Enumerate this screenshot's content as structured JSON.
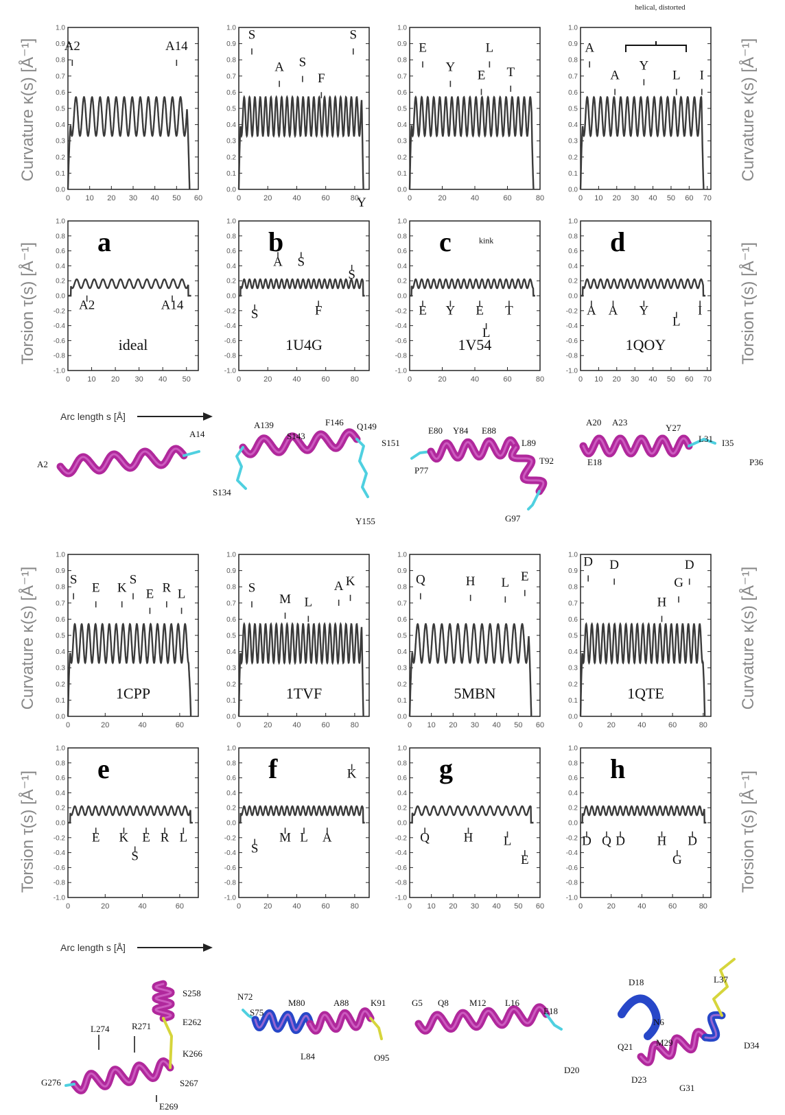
{
  "figure": {
    "y_label_curvature": "Curvature κ(s) [Å⁻¹]",
    "y_label_torsion": "Torsion τ(s) [Å⁻¹]",
    "x_label": "Arc length s [Å]",
    "annotations": {
      "bracket": "helical, distorted",
      "kink": "kink",
      "stray_y": "Y"
    },
    "colors": {
      "curve": "#3a3a3a",
      "helix": "#b0289c",
      "blue_segment": "#2747c8",
      "coil": "#4fd0e0"
    }
  },
  "chart_data": [
    {
      "panel": "a",
      "name": "ideal",
      "type": "line",
      "curvature_xlim": [
        0,
        60
      ],
      "curvature_xticks": [
        0,
        10,
        20,
        30,
        40,
        50,
        60
      ],
      "torsion_xlim": [
        0,
        55
      ],
      "torsion_xticks": [
        0,
        10,
        20,
        30,
        40,
        50
      ],
      "ylim_curvature": [
        0,
        1.0
      ],
      "yticks_curvature": [
        0.0,
        0.1,
        0.2,
        0.3,
        0.4,
        0.5,
        0.6,
        0.7,
        0.8,
        0.9,
        1.0
      ],
      "ylim_torsion": [
        -1.0,
        1.0
      ],
      "yticks_torsion": [
        -1.0,
        -0.8,
        -0.6,
        -0.4,
        -0.2,
        0.0,
        0.2,
        0.4,
        0.6,
        0.8,
        1.0
      ],
      "curvature_labels": [
        {
          "text": "A2",
          "x": 2,
          "y": 0.86
        },
        {
          "text": "A14",
          "x": 50,
          "y": 0.86
        }
      ],
      "torsion_labels": [
        {
          "text": "A2",
          "x": 8,
          "y": -0.18
        },
        {
          "text": "A14",
          "x": 44,
          "y": -0.18
        }
      ],
      "structure_labels": [
        "A2",
        "A14"
      ]
    },
    {
      "panel": "b",
      "name": "1U4G",
      "type": "line",
      "curvature_xlim": [
        0,
        90
      ],
      "curvature_xticks": [
        0,
        20,
        40,
        60,
        80
      ],
      "torsion_xlim": [
        0,
        90
      ],
      "torsion_xticks": [
        0,
        20,
        40,
        60,
        80
      ],
      "ylim_curvature": [
        0,
        1.0
      ],
      "yticks_curvature": [
        0.0,
        0.1,
        0.2,
        0.3,
        0.4,
        0.5,
        0.6,
        0.7,
        0.8,
        0.9,
        1.0
      ],
      "ylim_torsion": [
        -1.0,
        1.0
      ],
      "yticks_torsion": [
        -1.0,
        -0.8,
        -0.6,
        -0.4,
        -0.2,
        0.0,
        0.2,
        0.4,
        0.6,
        0.8,
        1.0
      ],
      "curvature_labels": [
        {
          "text": "S",
          "x": 9,
          "y": 0.93
        },
        {
          "text": "A",
          "x": 28,
          "y": 0.73
        },
        {
          "text": "S",
          "x": 44,
          "y": 0.76
        },
        {
          "text": "F",
          "x": 57,
          "y": 0.66
        },
        {
          "text": "S",
          "x": 79,
          "y": 0.93
        }
      ],
      "torsion_labels": [
        {
          "text": "A",
          "x": 27,
          "y": 0.4
        },
        {
          "text": "S",
          "x": 43,
          "y": 0.4
        },
        {
          "text": "S",
          "x": 78,
          "y": 0.23
        },
        {
          "text": "S",
          "x": 11,
          "y": -0.3
        },
        {
          "text": "F",
          "x": 55,
          "y": -0.25
        }
      ],
      "structure_labels": [
        "A139",
        "S143",
        "F146",
        "Q149",
        "S151",
        "S134",
        "Y155"
      ]
    },
    {
      "panel": "c",
      "name": "1V54",
      "type": "line",
      "curvature_xlim": [
        0,
        80
      ],
      "curvature_xticks": [
        0,
        20,
        40,
        60,
        80
      ],
      "torsion_xlim": [
        0,
        80
      ],
      "torsion_xticks": [
        0,
        20,
        40,
        60,
        80
      ],
      "ylim_curvature": [
        0,
        1.0
      ],
      "yticks_curvature": [
        0.0,
        0.1,
        0.2,
        0.3,
        0.4,
        0.5,
        0.6,
        0.7,
        0.8,
        0.9,
        1.0
      ],
      "ylim_torsion": [
        -1.0,
        1.0
      ],
      "yticks_torsion": [
        -1.0,
        -0.8,
        -0.6,
        -0.4,
        -0.2,
        0.0,
        0.2,
        0.4,
        0.6,
        0.8,
        1.0
      ],
      "curvature_labels": [
        {
          "text": "E",
          "x": 8,
          "y": 0.85
        },
        {
          "text": "Y",
          "x": 25,
          "y": 0.73
        },
        {
          "text": "L",
          "x": 49,
          "y": 0.85
        },
        {
          "text": "E",
          "x": 44,
          "y": 0.68
        },
        {
          "text": "T",
          "x": 62,
          "y": 0.7
        }
      ],
      "torsion_labels": [
        {
          "text": "kink",
          "x": 47,
          "y": 0.7
        },
        {
          "text": "E",
          "x": 8,
          "y": -0.25
        },
        {
          "text": "Y",
          "x": 25,
          "y": -0.25
        },
        {
          "text": "E",
          "x": 43,
          "y": -0.25
        },
        {
          "text": "T",
          "x": 61,
          "y": -0.25
        },
        {
          "text": "L",
          "x": 47,
          "y": -0.55
        }
      ],
      "structure_labels": [
        "E80",
        "Y84",
        "E88",
        "L89",
        "T92",
        "P77",
        "G97"
      ]
    },
    {
      "panel": "d",
      "name": "1QOY",
      "type": "line",
      "curvature_xlim": [
        0,
        72
      ],
      "curvature_xticks": [
        0,
        10,
        20,
        30,
        40,
        50,
        60,
        70
      ],
      "torsion_xlim": [
        0,
        72
      ],
      "torsion_xticks": [
        0,
        10,
        20,
        30,
        40,
        50,
        60,
        70
      ],
      "ylim_curvature": [
        0,
        1.0
      ],
      "yticks_curvature": [
        0.0,
        0.1,
        0.2,
        0.3,
        0.4,
        0.5,
        0.6,
        0.7,
        0.8,
        0.9,
        1.0
      ],
      "ylim_torsion": [
        -1.0,
        1.0
      ],
      "yticks_torsion": [
        -1.0,
        -0.8,
        -0.6,
        -0.4,
        -0.2,
        0.0,
        0.2,
        0.4,
        0.6,
        0.8,
        1.0
      ],
      "curvature_labels": [
        {
          "text": "A",
          "x": 5,
          "y": 0.85
        },
        {
          "text": "A",
          "x": 19,
          "y": 0.68
        },
        {
          "text": "Y",
          "x": 35,
          "y": 0.74
        },
        {
          "text": "L",
          "x": 53,
          "y": 0.68
        },
        {
          "text": "I",
          "x": 67,
          "y": 0.68
        }
      ],
      "torsion_labels": [
        {
          "text": "A",
          "x": 6,
          "y": -0.25
        },
        {
          "text": "A",
          "x": 18,
          "y": -0.25
        },
        {
          "text": "Y",
          "x": 35,
          "y": -0.25
        },
        {
          "text": "L",
          "x": 53,
          "y": -0.4
        },
        {
          "text": "I",
          "x": 66,
          "y": -0.25
        }
      ],
      "structure_labels": [
        "A20",
        "A23",
        "Y27",
        "L31",
        "I35",
        "E18",
        "P36"
      ]
    },
    {
      "panel": "e",
      "name": "1CPP",
      "type": "line",
      "curvature_xlim": [
        0,
        70
      ],
      "curvature_xticks": [
        0,
        20,
        40,
        60
      ],
      "torsion_xlim": [
        0,
        70
      ],
      "torsion_xticks": [
        0,
        20,
        40,
        60
      ],
      "ylim_curvature": [
        0,
        1.0
      ],
      "yticks_curvature": [
        0.0,
        0.1,
        0.2,
        0.3,
        0.4,
        0.5,
        0.6,
        0.7,
        0.8,
        0.9,
        1.0
      ],
      "ylim_torsion": [
        -1.0,
        1.0
      ],
      "yticks_torsion": [
        -1.0,
        -0.8,
        -0.6,
        -0.4,
        -0.2,
        0.0,
        0.2,
        0.4,
        0.6,
        0.8,
        1.0
      ],
      "curvature_labels": [
        {
          "text": "S",
          "x": 3,
          "y": 0.82
        },
        {
          "text": "E",
          "x": 15,
          "y": 0.77
        },
        {
          "text": "K",
          "x": 29,
          "y": 0.77
        },
        {
          "text": "S",
          "x": 35,
          "y": 0.82
        },
        {
          "text": "E",
          "x": 44,
          "y": 0.73
        },
        {
          "text": "R",
          "x": 53,
          "y": 0.77
        },
        {
          "text": "L",
          "x": 61,
          "y": 0.73
        }
      ],
      "torsion_labels": [
        {
          "text": "E",
          "x": 15,
          "y": -0.25
        },
        {
          "text": "K",
          "x": 30,
          "y": -0.25
        },
        {
          "text": "E",
          "x": 42,
          "y": -0.25
        },
        {
          "text": "R",
          "x": 52,
          "y": -0.25
        },
        {
          "text": "L",
          "x": 62,
          "y": -0.25
        },
        {
          "text": "S",
          "x": 36,
          "y": -0.5
        }
      ],
      "structure_labels": [
        "S258",
        "E262",
        "K266",
        "S267",
        "E269",
        "R271",
        "L274",
        "G276"
      ]
    },
    {
      "panel": "f",
      "name": "1TVF",
      "type": "line",
      "curvature_xlim": [
        0,
        90
      ],
      "curvature_xticks": [
        0,
        20,
        40,
        60,
        80
      ],
      "torsion_xlim": [
        0,
        90
      ],
      "torsion_xticks": [
        0,
        20,
        40,
        60,
        80
      ],
      "ylim_curvature": [
        0,
        1.0
      ],
      "yticks_curvature": [
        0.0,
        0.1,
        0.2,
        0.3,
        0.4,
        0.5,
        0.6,
        0.7,
        0.8,
        0.9,
        1.0
      ],
      "ylim_torsion": [
        -1.0,
        1.0
      ],
      "yticks_torsion": [
        -1.0,
        -0.8,
        -0.6,
        -0.4,
        -0.2,
        0.0,
        0.2,
        0.4,
        0.6,
        0.8,
        1.0
      ],
      "curvature_labels": [
        {
          "text": "S",
          "x": 9,
          "y": 0.77
        },
        {
          "text": "M",
          "x": 32,
          "y": 0.7
        },
        {
          "text": "L",
          "x": 48,
          "y": 0.68
        },
        {
          "text": "A",
          "x": 69,
          "y": 0.78
        },
        {
          "text": "K",
          "x": 77,
          "y": 0.81
        }
      ],
      "torsion_labels": [
        {
          "text": "K",
          "x": 78,
          "y": 0.6
        },
        {
          "text": "S",
          "x": 11,
          "y": -0.4
        },
        {
          "text": "M",
          "x": 32,
          "y": -0.25
        },
        {
          "text": "L",
          "x": 45,
          "y": -0.25
        },
        {
          "text": "A",
          "x": 61,
          "y": -0.25
        }
      ],
      "structure_labels": [
        "N72",
        "S75",
        "M80",
        "A88",
        "K91",
        "L84",
        "O95"
      ]
    },
    {
      "panel": "g",
      "name": "5MBN",
      "type": "line",
      "curvature_xlim": [
        0,
        60
      ],
      "curvature_xticks": [
        0,
        10,
        20,
        30,
        40,
        50,
        60
      ],
      "torsion_xlim": [
        0,
        60
      ],
      "torsion_xticks": [
        0,
        10,
        20,
        30,
        40,
        50,
        60
      ],
      "ylim_curvature": [
        0,
        1.0
      ],
      "yticks_curvature": [
        0.0,
        0.1,
        0.2,
        0.3,
        0.4,
        0.5,
        0.6,
        0.7,
        0.8,
        0.9,
        1.0
      ],
      "ylim_torsion": [
        -1.0,
        1.0
      ],
      "yticks_torsion": [
        -1.0,
        -0.8,
        -0.6,
        -0.4,
        -0.2,
        0.0,
        0.2,
        0.4,
        0.6,
        0.8,
        1.0
      ],
      "curvature_labels": [
        {
          "text": "Q",
          "x": 5,
          "y": 0.82
        },
        {
          "text": "H",
          "x": 28,
          "y": 0.81
        },
        {
          "text": "L",
          "x": 44,
          "y": 0.8
        },
        {
          "text": "E",
          "x": 53,
          "y": 0.84
        }
      ],
      "torsion_labels": [
        {
          "text": "Q",
          "x": 7,
          "y": -0.25
        },
        {
          "text": "H",
          "x": 27,
          "y": -0.25
        },
        {
          "text": "L",
          "x": 45,
          "y": -0.3
        },
        {
          "text": "E",
          "x": 53,
          "y": -0.55
        }
      ],
      "structure_labels": [
        "G5",
        "Q8",
        "M12",
        "L16",
        "E18",
        "D20"
      ]
    },
    {
      "panel": "h",
      "name": "1QTE",
      "type": "line",
      "curvature_xlim": [
        0,
        85
      ],
      "curvature_xticks": [
        0,
        20,
        40,
        60,
        80
      ],
      "torsion_xlim": [
        0,
        85
      ],
      "torsion_xticks": [
        0,
        20,
        40,
        60,
        80
      ],
      "ylim_curvature": [
        0,
        1.0
      ],
      "yticks_curvature": [
        0.0,
        0.1,
        0.2,
        0.3,
        0.4,
        0.5,
        0.6,
        0.7,
        0.8,
        0.9,
        1.0
      ],
      "ylim_torsion": [
        -1.0,
        1.0
      ],
      "yticks_torsion": [
        -1.0,
        -0.8,
        -0.6,
        -0.4,
        -0.2,
        0.0,
        0.2,
        0.4,
        0.6,
        0.8,
        1.0
      ],
      "curvature_labels": [
        {
          "text": "D",
          "x": 5,
          "y": 0.93
        },
        {
          "text": "D",
          "x": 22,
          "y": 0.91
        },
        {
          "text": "G",
          "x": 64,
          "y": 0.8
        },
        {
          "text": "H",
          "x": 53,
          "y": 0.68
        },
        {
          "text": "D",
          "x": 71,
          "y": 0.91
        }
      ],
      "torsion_labels": [
        {
          "text": "D",
          "x": 4,
          "y": -0.3
        },
        {
          "text": "Q",
          "x": 17,
          "y": -0.3
        },
        {
          "text": "D",
          "x": 26,
          "y": -0.3
        },
        {
          "text": "H",
          "x": 53,
          "y": -0.3
        },
        {
          "text": "G",
          "x": 63,
          "y": -0.55
        },
        {
          "text": "D",
          "x": 73,
          "y": -0.3
        }
      ],
      "structure_labels": [
        "D18",
        "N6",
        "L37",
        "Q21",
        "M29",
        "D34",
        "D23",
        "G31"
      ]
    }
  ]
}
